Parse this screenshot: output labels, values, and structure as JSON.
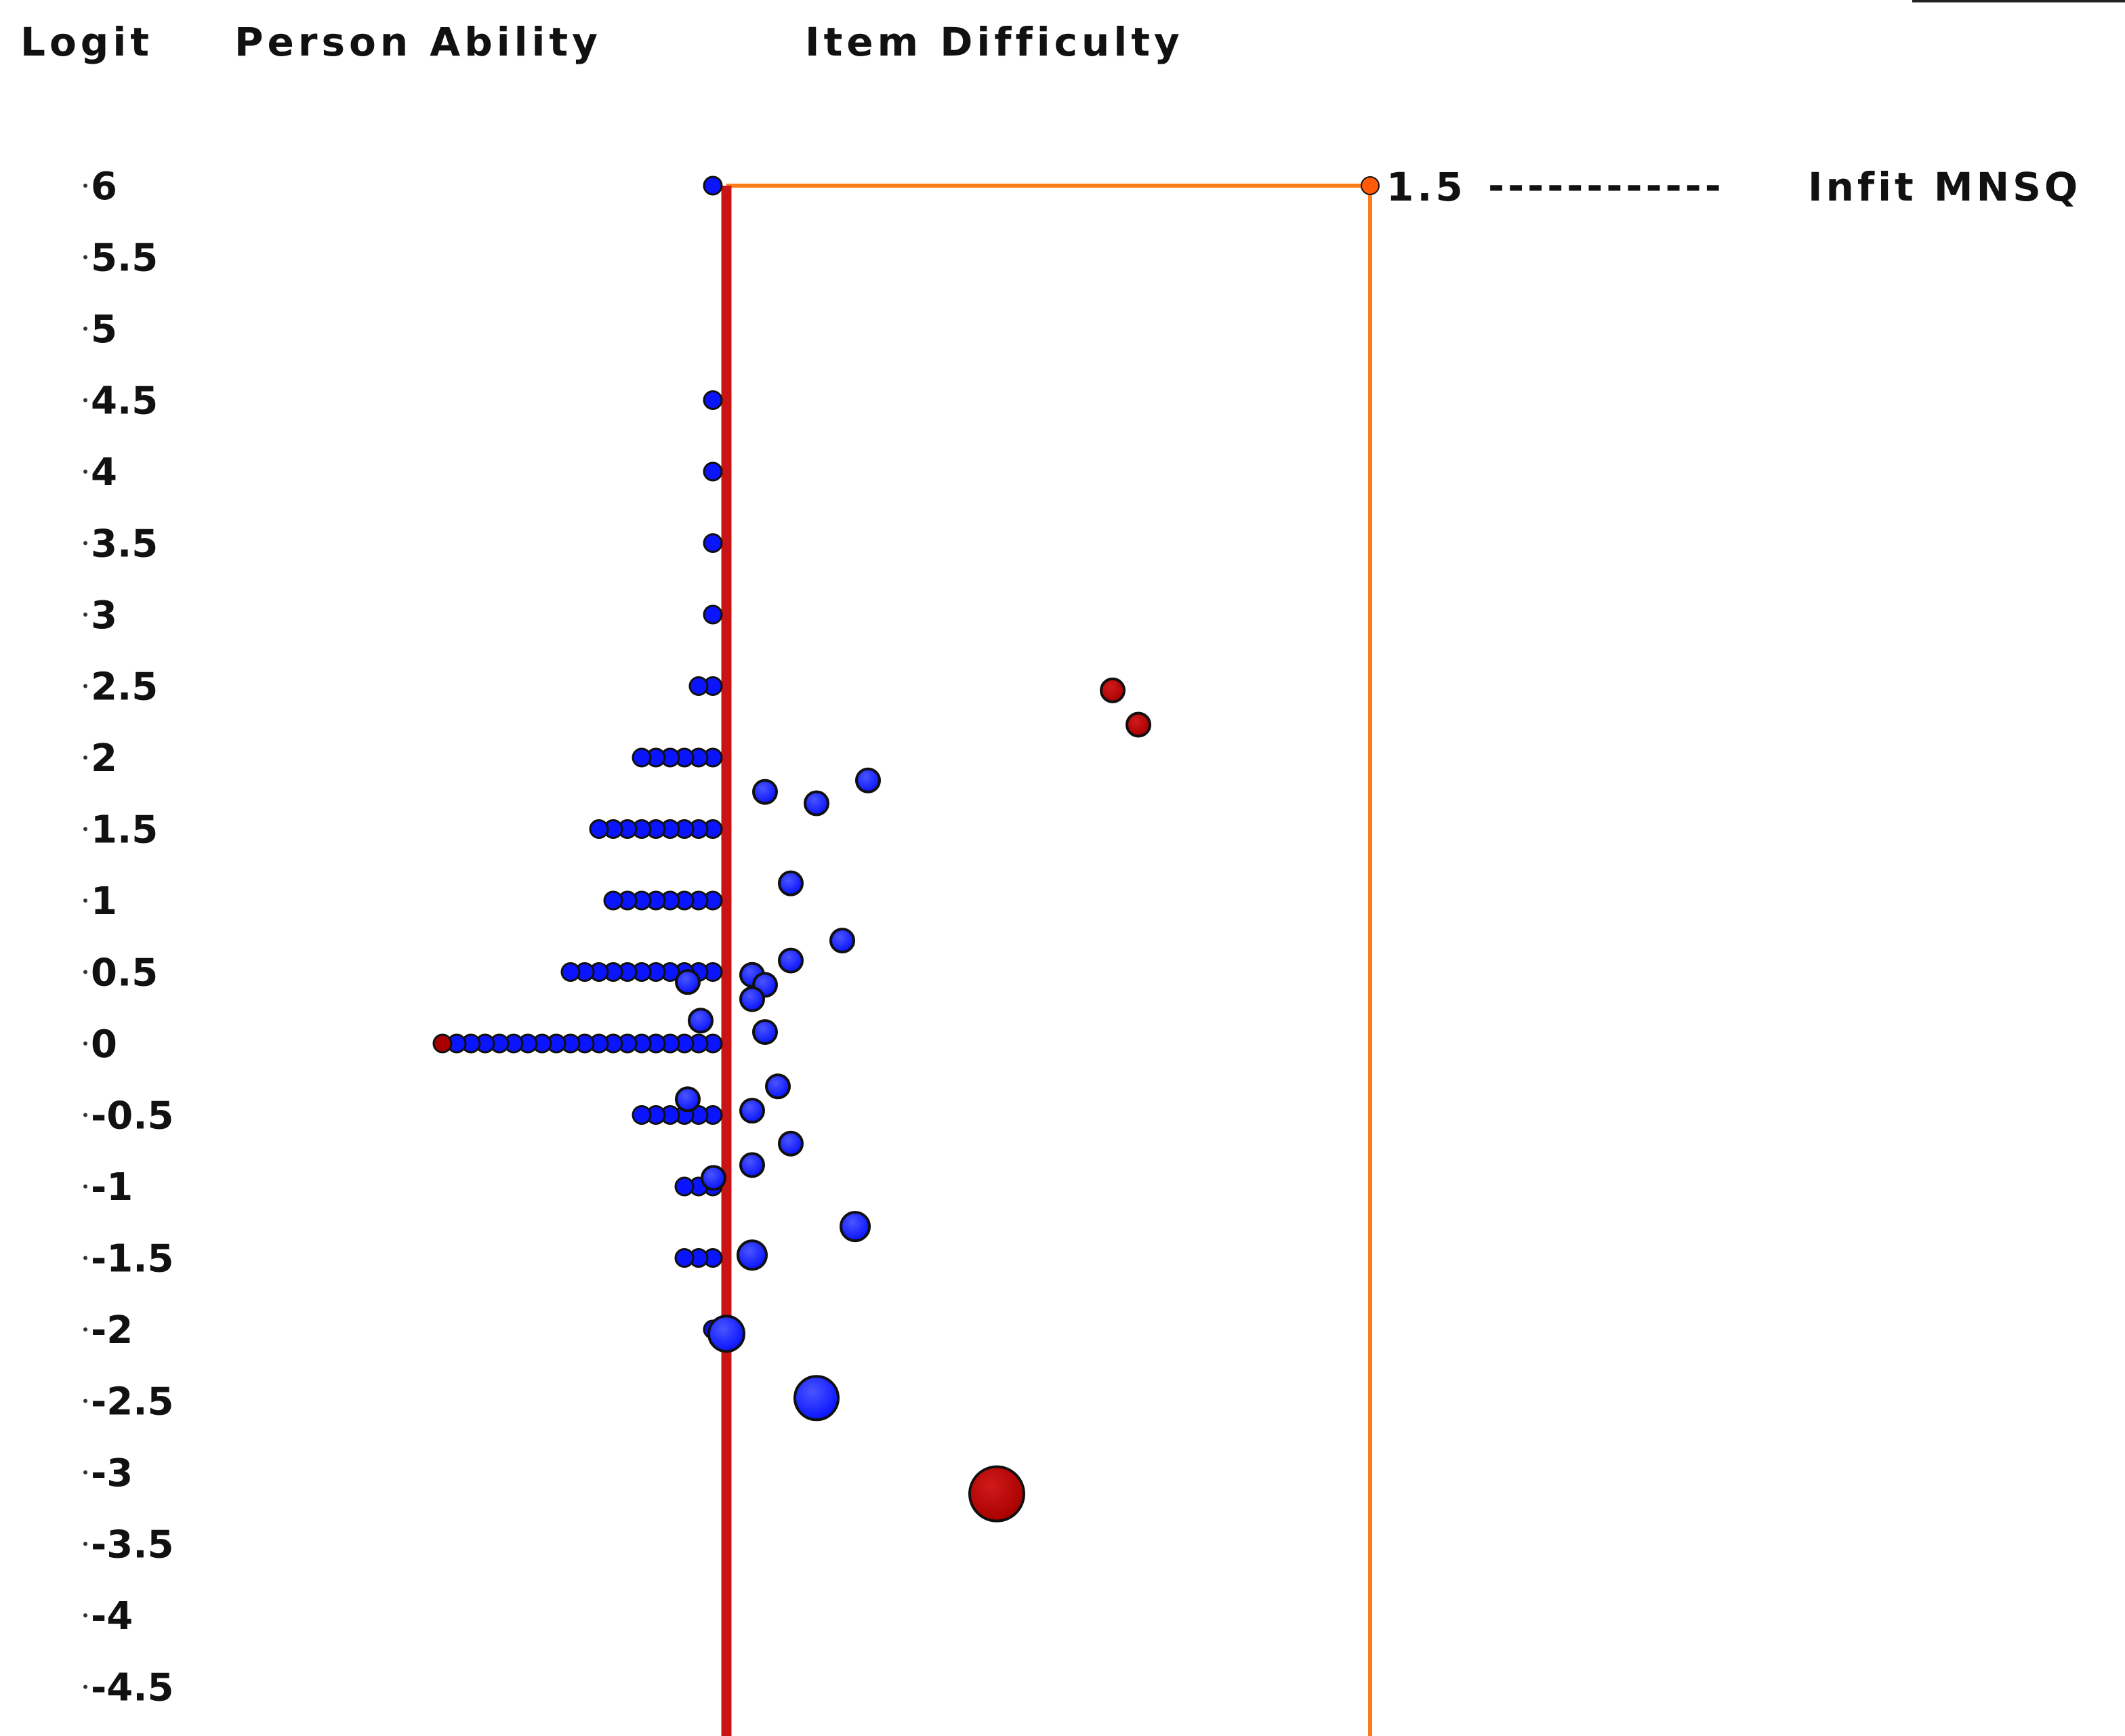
{
  "chart_data": {
    "type": "scatter",
    "headers": {
      "logit": "Logit",
      "person": "Person Ability",
      "item": "Item Difficulty"
    },
    "infit": {
      "value_label": "1.5",
      "dashes": "------------",
      "label": "Infit MNSQ",
      "threshold": 1.5,
      "reference": 1.0
    },
    "y_ticks": [
      "6",
      "5.5",
      "5",
      "4.5",
      "4",
      "3.5",
      "3",
      "2.5",
      "2",
      "1.5",
      "1",
      "0.5",
      "0",
      "-0.5",
      "-1",
      "-1.5",
      "-2",
      "-2.5",
      "-3",
      "-3.5",
      "-4",
      "-4.5"
    ],
    "ylim": [
      -4.75,
      6
    ],
    "infit_range": [
      1.0,
      1.5
    ],
    "persons": [
      {
        "logit": 6,
        "count": 1
      },
      {
        "logit": 4.5,
        "count": 1
      },
      {
        "logit": 4,
        "count": 1
      },
      {
        "logit": 3.5,
        "count": 1
      },
      {
        "logit": 3,
        "count": 1
      },
      {
        "logit": 2.5,
        "count": 2
      },
      {
        "logit": 2,
        "count": 6
      },
      {
        "logit": 1.5,
        "count": 9
      },
      {
        "logit": 1,
        "count": 8
      },
      {
        "logit": 0.5,
        "count": 11
      },
      {
        "logit": 0,
        "count": 20,
        "misfit_index": 19
      },
      {
        "logit": -0.5,
        "count": 6
      },
      {
        "logit": -1,
        "count": 3
      },
      {
        "logit": -1.5,
        "count": 3
      },
      {
        "logit": -2,
        "count": 1
      }
    ],
    "items": [
      {
        "infit": 1.3,
        "logit": 2.47,
        "size": 1,
        "misfit": true
      },
      {
        "infit": 1.32,
        "logit": 2.23,
        "size": 1,
        "misfit": true
      },
      {
        "infit": 1.11,
        "logit": 1.84,
        "size": 1
      },
      {
        "infit": 1.03,
        "logit": 1.76,
        "size": 1
      },
      {
        "infit": 1.07,
        "logit": 1.68,
        "size": 1
      },
      {
        "infit": 1.05,
        "logit": 1.12,
        "size": 1
      },
      {
        "infit": 1.09,
        "logit": 0.72,
        "size": 1
      },
      {
        "infit": 1.05,
        "logit": 0.58,
        "size": 1
      },
      {
        "infit": 1.02,
        "logit": 0.48,
        "size": 1
      },
      {
        "infit": 0.97,
        "logit": 0.43,
        "size": 1
      },
      {
        "infit": 1.03,
        "logit": 0.41,
        "size": 1
      },
      {
        "infit": 1.02,
        "logit": 0.31,
        "size": 1
      },
      {
        "infit": 0.98,
        "logit": 0.16,
        "size": 1
      },
      {
        "infit": 1.03,
        "logit": 0.08,
        "size": 1
      },
      {
        "infit": 1.04,
        "logit": -0.3,
        "size": 1
      },
      {
        "infit": 0.97,
        "logit": -0.39,
        "size": 1
      },
      {
        "infit": 1.02,
        "logit": -0.47,
        "size": 1
      },
      {
        "infit": 1.05,
        "logit": -0.7,
        "size": 1
      },
      {
        "infit": 1.02,
        "logit": -0.85,
        "size": 1
      },
      {
        "infit": 0.99,
        "logit": -0.94,
        "size": 1
      },
      {
        "infit": 1.1,
        "logit": -1.28,
        "size": 2
      },
      {
        "infit": 1.02,
        "logit": -1.48,
        "size": 2
      },
      {
        "infit": 1.0,
        "logit": -2.03,
        "size": 3
      },
      {
        "infit": 1.07,
        "logit": -2.48,
        "size": 4
      },
      {
        "infit": 1.21,
        "logit": -3.15,
        "size": 5,
        "misfit": true
      }
    ]
  },
  "colors": {
    "person": "#0a14ff",
    "item": "#0a14ff",
    "misfit": "#a80000",
    "axis_red": "#c81414",
    "infit_orange": "#ff7d19",
    "text": "#111111"
  }
}
